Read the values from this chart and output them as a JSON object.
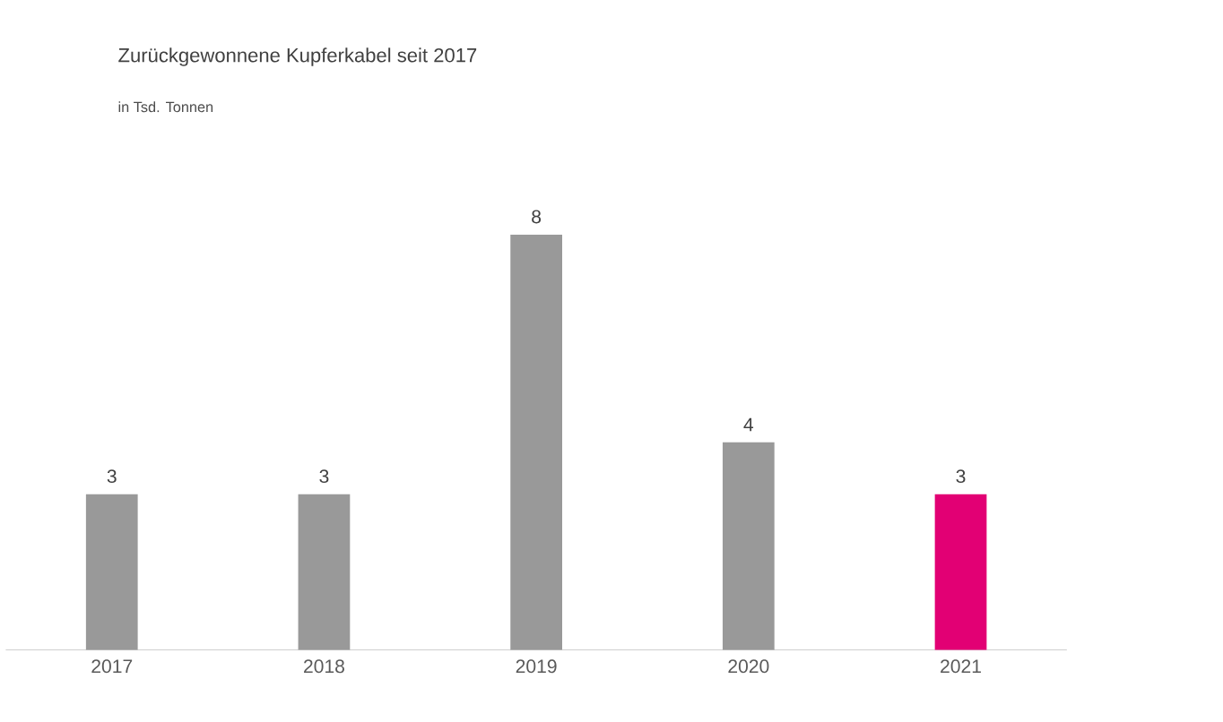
{
  "chart_data": {
    "type": "bar",
    "title": "Zurückgewonnene Kupferkabel seit 2017",
    "subtitle": "in Tsd. Tonnen",
    "categories": [
      "2017",
      "2018",
      "2019",
      "2020",
      "2021"
    ],
    "values": [
      3,
      3,
      8,
      4,
      3
    ],
    "colors": [
      "#999999",
      "#999999",
      "#999999",
      "#999999",
      "#e20074"
    ],
    "data_labels": true
  }
}
